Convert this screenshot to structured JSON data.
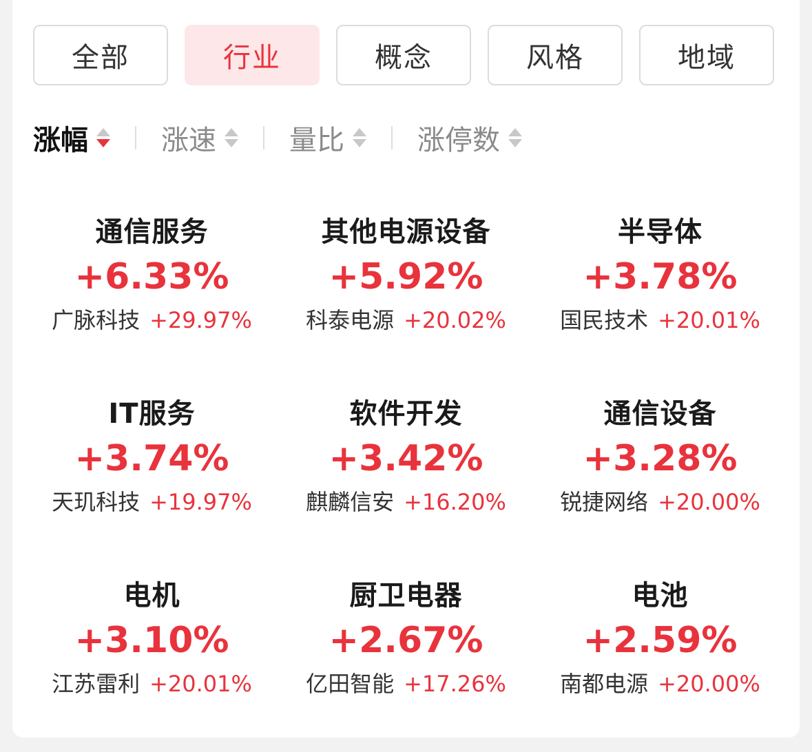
{
  "colors": {
    "accent_red": "#e8333c",
    "active_tab_bg": "#fde7e8",
    "text_dark": "#1a1a1a",
    "text_muted": "#8a8a8a"
  },
  "tabs": [
    {
      "label": "全部",
      "active": false
    },
    {
      "label": "行业",
      "active": true
    },
    {
      "label": "概念",
      "active": false
    },
    {
      "label": "风格",
      "active": false
    },
    {
      "label": "地域",
      "active": false
    }
  ],
  "sort_options": [
    {
      "label": "涨幅",
      "active": true,
      "direction": "desc"
    },
    {
      "label": "涨速",
      "active": false
    },
    {
      "label": "量比",
      "active": false
    },
    {
      "label": "涨停数",
      "active": false
    }
  ],
  "sectors": [
    {
      "name": "通信服务",
      "change": "+6.33%",
      "leader_name": "广脉科技",
      "leader_change": "+29.97%"
    },
    {
      "name": "其他电源设备",
      "change": "+5.92%",
      "leader_name": "科泰电源",
      "leader_change": "+20.02%"
    },
    {
      "name": "半导体",
      "change": "+3.78%",
      "leader_name": "国民技术",
      "leader_change": "+20.01%"
    },
    {
      "name": "IT服务",
      "change": "+3.74%",
      "leader_name": "天玑科技",
      "leader_change": "+19.97%"
    },
    {
      "name": "软件开发",
      "change": "+3.42%",
      "leader_name": "麒麟信安",
      "leader_change": "+16.20%"
    },
    {
      "name": "通信设备",
      "change": "+3.28%",
      "leader_name": "锐捷网络",
      "leader_change": "+20.00%"
    },
    {
      "name": "电机",
      "change": "+3.10%",
      "leader_name": "江苏雷利",
      "leader_change": "+20.01%"
    },
    {
      "name": "厨卫电器",
      "change": "+2.67%",
      "leader_name": "亿田智能",
      "leader_change": "+17.26%"
    },
    {
      "name": "电池",
      "change": "+2.59%",
      "leader_name": "南都电源",
      "leader_change": "+20.00%"
    }
  ]
}
